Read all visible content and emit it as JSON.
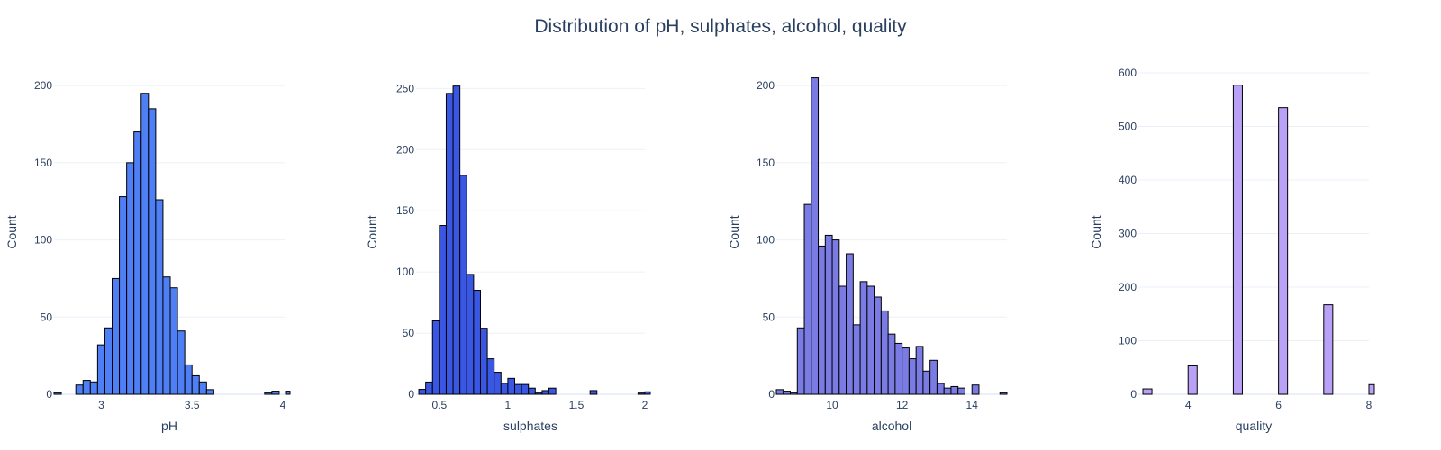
{
  "title": "Distribution of pH, sulphates, alcohol, quality",
  "chart_data": [
    {
      "type": "bar",
      "xlabel": "pH",
      "ylabel": "Count",
      "xlim": [
        2.74,
        4.01
      ],
      "ylim": [
        0,
        210
      ],
      "xticks": [
        3,
        3.5,
        4
      ],
      "yticks": [
        0,
        50,
        100,
        150,
        200
      ],
      "bin_width": 0.04,
      "x": [
        2.74,
        2.86,
        2.9,
        2.94,
        2.98,
        3.02,
        3.06,
        3.1,
        3.14,
        3.18,
        3.22,
        3.26,
        3.3,
        3.34,
        3.38,
        3.42,
        3.46,
        3.5,
        3.54,
        3.58,
        3.62,
        3.66,
        3.7,
        3.74,
        3.78,
        3.9,
        3.94,
        4.02
      ],
      "values": [
        1,
        6,
        9,
        8,
        32,
        43,
        75,
        128,
        150,
        170,
        195,
        185,
        126,
        76,
        69,
        41,
        19,
        12,
        8,
        3,
        0,
        0,
        0,
        0,
        0,
        1,
        2,
        2
      ],
      "color": "#4f7ff5"
    },
    {
      "type": "bar",
      "xlabel": "sulphates",
      "ylabel": "Count",
      "xlim": [
        0.33,
        2.0
      ],
      "ylim": [
        0,
        265
      ],
      "xticks": [
        0.5,
        1,
        1.5,
        2
      ],
      "yticks": [
        0,
        50,
        100,
        150,
        200,
        250
      ],
      "bin_width": 0.05,
      "x": [
        0.35,
        0.4,
        0.45,
        0.5,
        0.55,
        0.6,
        0.65,
        0.7,
        0.75,
        0.8,
        0.85,
        0.9,
        0.95,
        1.0,
        1.05,
        1.1,
        1.15,
        1.2,
        1.25,
        1.3,
        1.35,
        1.6,
        1.95,
        2.0
      ],
      "values": [
        4,
        10,
        60,
        138,
        246,
        252,
        179,
        98,
        85,
        54,
        29,
        18,
        9,
        13,
        8,
        8,
        5,
        1,
        3,
        5,
        0,
        3,
        1,
        2
      ],
      "color": "#3a57e3"
    },
    {
      "type": "bar",
      "xlabel": "alcohol",
      "ylabel": "Count",
      "xlim": [
        8.4,
        15.0
      ],
      "ylim": [
        0,
        210
      ],
      "xticks": [
        10,
        12,
        14
      ],
      "yticks": [
        0,
        50,
        100,
        150,
        200
      ],
      "bin_width": 0.2,
      "x": [
        8.4,
        8.6,
        8.8,
        9.0,
        9.2,
        9.4,
        9.6,
        9.8,
        10.0,
        10.2,
        10.4,
        10.6,
        10.8,
        11.0,
        11.2,
        11.4,
        11.6,
        11.8,
        12.0,
        12.2,
        12.4,
        12.6,
        12.8,
        13.0,
        13.2,
        13.4,
        13.6,
        14.0,
        14.8
      ],
      "values": [
        3,
        2,
        1,
        43,
        123,
        205,
        96,
        103,
        100,
        70,
        91,
        45,
        73,
        70,
        63,
        54,
        39,
        33,
        30,
        23,
        31,
        15,
        22,
        7,
        4,
        5,
        4,
        6,
        1
      ],
      "color": "#7a7ce4"
    },
    {
      "type": "bar",
      "xlabel": "quality",
      "ylabel": "Count",
      "xlim": [
        2.9,
        8.0
      ],
      "ylim": [
        0,
        605
      ],
      "xticks": [
        4,
        6,
        8
      ],
      "yticks": [
        0,
        100,
        200,
        300,
        400,
        500,
        600
      ],
      "bin_width": 0.2,
      "x": [
        3,
        4,
        5,
        6,
        7,
        8
      ],
      "values": [
        10,
        53,
        577,
        535,
        167,
        18
      ],
      "color": "#b9a1f7"
    }
  ]
}
